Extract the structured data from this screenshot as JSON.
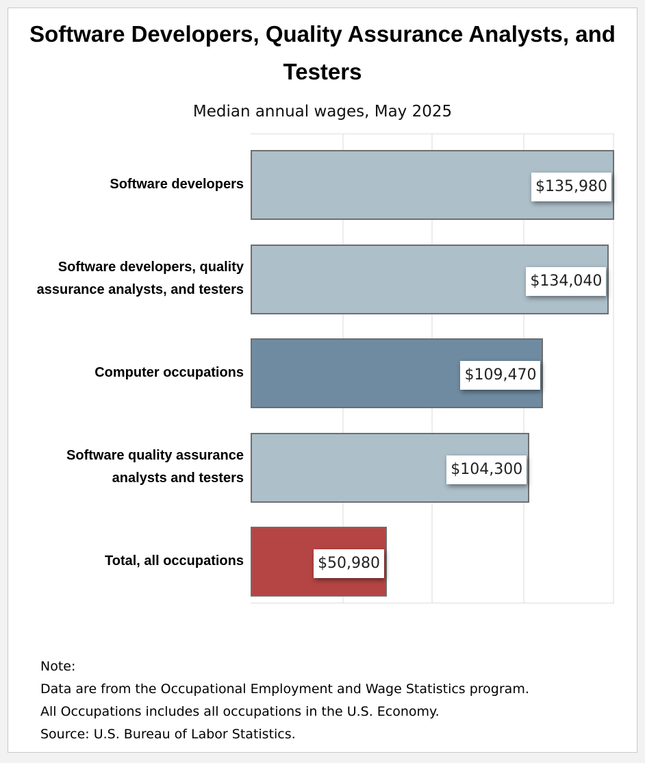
{
  "chart_data": {
    "type": "bar",
    "orientation": "horizontal",
    "title": "Software Developers, Quality Assurance Analysts, and Testers",
    "subtitle": "Median annual wages, May 2025",
    "categories": [
      "Software developers",
      "Software developers, quality assurance analysts, and testers",
      "Computer occupations",
      "Software quality assurance analysts and testers",
      "Total, all occupations"
    ],
    "values": [
      135980,
      134040,
      109470,
      104300,
      50980
    ],
    "data_labels": [
      "$135,980",
      "$134,040",
      "$109,470",
      "$104,300",
      "$50,980"
    ],
    "bar_colors": [
      "#adbfc9",
      "#adbfc9",
      "#6f8ba2",
      "#adbfc9",
      "#b54545"
    ],
    "xlim": [
      0,
      135980
    ],
    "grid": true,
    "legend": "none"
  },
  "notes": [
    "Note:",
    "Data are from the Occupational Employment and Wage Statistics program.",
    "All Occupations includes all occupations in the U.S. Economy.",
    "Source: U.S. Bureau of Labor Statistics."
  ]
}
